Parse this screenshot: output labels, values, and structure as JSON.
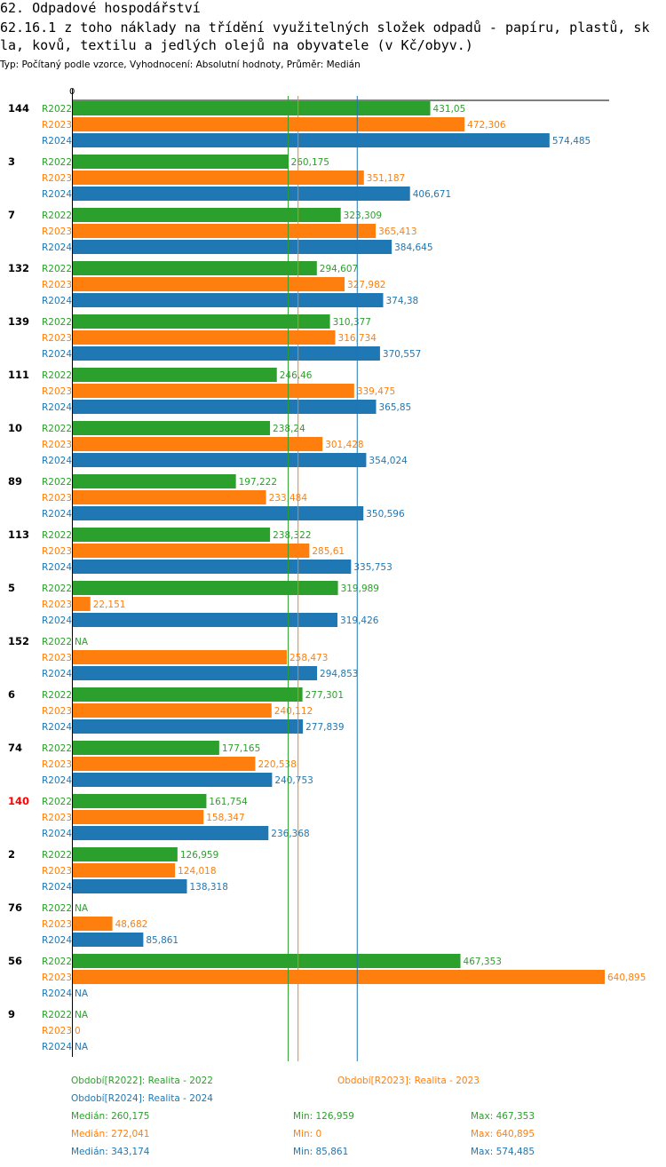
{
  "header": {
    "title": "62. Odpadové hospodářství",
    "subtitle_line1": "62.16.1 z toho náklady na třídění využitelných složek odpadů - papíru, plastů, sk",
    "subtitle_line2": "la, kovů, textilu a jedlých olejů na obyvatele (v Kč/obyv.)",
    "type_line": "Typ: Počítaný podle vzorce, Vyhodnocení: Absolutní hodnoty, Průměr: Medián"
  },
  "colors": {
    "R2022": "#2ca02c",
    "R2023": "#ff7f0e",
    "R2024": "#1f77b4",
    "highlight": "#ff0000"
  },
  "chart_data": {
    "type": "bar",
    "orientation": "horizontal",
    "axis_zero_label": "0",
    "xlim": [
      0,
      640.895
    ],
    "series_names": [
      "R2022",
      "R2023",
      "R2024"
    ],
    "na_label": "NA",
    "groups": [
      {
        "label": "144",
        "highlight": false,
        "values": [
          431.05,
          472.306,
          574.485
        ],
        "labels": [
          "431,05",
          "472,306",
          "574,485"
        ]
      },
      {
        "label": "3",
        "highlight": false,
        "values": [
          260.175,
          351.187,
          406.671
        ],
        "labels": [
          "260,175",
          "351,187",
          "406,671"
        ]
      },
      {
        "label": "7",
        "highlight": false,
        "values": [
          323.309,
          365.413,
          384.645
        ],
        "labels": [
          "323,309",
          "365,413",
          "384,645"
        ]
      },
      {
        "label": "132",
        "highlight": false,
        "values": [
          294.607,
          327.982,
          374.38
        ],
        "labels": [
          "294,607",
          "327,982",
          "374,38"
        ]
      },
      {
        "label": "139",
        "highlight": false,
        "values": [
          310.377,
          316.734,
          370.557
        ],
        "labels": [
          "310,377",
          "316,734",
          "370,557"
        ]
      },
      {
        "label": "111",
        "highlight": false,
        "values": [
          246.46,
          339.475,
          365.85
        ],
        "labels": [
          "246,46",
          "339,475",
          "365,85"
        ]
      },
      {
        "label": "10",
        "highlight": false,
        "values": [
          238.24,
          301.428,
          354.024
        ],
        "labels": [
          "238,24",
          "301,428",
          "354,024"
        ]
      },
      {
        "label": "89",
        "highlight": false,
        "values": [
          197.222,
          233.484,
          350.596
        ],
        "labels": [
          "197,222",
          "233,484",
          "350,596"
        ]
      },
      {
        "label": "113",
        "highlight": false,
        "values": [
          238.322,
          285.61,
          335.753
        ],
        "labels": [
          "238,322",
          "285,61",
          "335,753"
        ]
      },
      {
        "label": "5",
        "highlight": false,
        "values": [
          319.989,
          22.151,
          319.426
        ],
        "labels": [
          "319,989",
          "22,151",
          "319,426"
        ]
      },
      {
        "label": "152",
        "highlight": false,
        "values": [
          null,
          258.473,
          294.853
        ],
        "labels": [
          "NA",
          "258,473",
          "294,853"
        ]
      },
      {
        "label": "6",
        "highlight": false,
        "values": [
          277.301,
          240.112,
          277.839
        ],
        "labels": [
          "277,301",
          "240,112",
          "277,839"
        ]
      },
      {
        "label": "74",
        "highlight": false,
        "values": [
          177.165,
          220.538,
          240.753
        ],
        "labels": [
          "177,165",
          "220,538",
          "240,753"
        ]
      },
      {
        "label": "140",
        "highlight": true,
        "values": [
          161.754,
          158.347,
          236.368
        ],
        "labels": [
          "161,754",
          "158,347",
          "236,368"
        ]
      },
      {
        "label": "2",
        "highlight": false,
        "values": [
          126.959,
          124.018,
          138.318
        ],
        "labels": [
          "126,959",
          "124,018",
          "138,318"
        ]
      },
      {
        "label": "76",
        "highlight": false,
        "values": [
          null,
          48.682,
          85.861
        ],
        "labels": [
          "NA",
          "48,682",
          "85,861"
        ]
      },
      {
        "label": "56",
        "highlight": false,
        "values": [
          467.353,
          640.895,
          null
        ],
        "labels": [
          "467,353",
          "640,895",
          "NA"
        ]
      },
      {
        "label": "9",
        "highlight": false,
        "values": [
          null,
          0,
          null
        ],
        "labels": [
          "NA",
          "0",
          "NA"
        ]
      }
    ],
    "medians": [
      260.175,
      272.041,
      343.174
    ],
    "legend": {
      "series": [
        "Období[R2022]: Realita - 2022",
        "Období[R2023]: Realita - 2023",
        "Období[R2024]: Realita - 2024"
      ],
      "stats": [
        [
          "Medián: 260,175",
          "Min: 126,959",
          "Max: 467,353"
        ],
        [
          "Medián: 272,041",
          "Min: 0",
          "Max: 640,895"
        ],
        [
          "Medián: 343,174",
          "Min: 85,861",
          "Max: 574,485"
        ]
      ]
    }
  }
}
